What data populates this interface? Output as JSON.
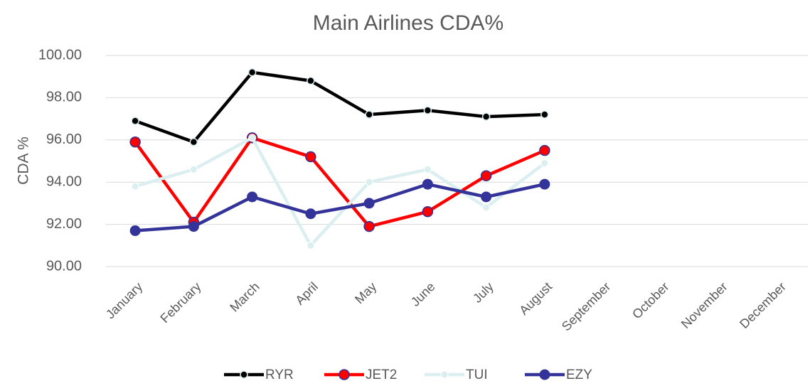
{
  "chart_data": {
    "type": "line",
    "title": "Main Airlines CDA%",
    "y_label": "CDA %",
    "categories": [
      "January",
      "February",
      "March",
      "April",
      "May",
      "June",
      "July",
      "August",
      "September",
      "October",
      "November",
      "December"
    ],
    "series": [
      {
        "name": "RYR",
        "color": "#000000",
        "values": [
          96.9,
          95.9,
          99.2,
          98.8,
          97.2,
          97.4,
          97.1,
          97.2,
          null,
          null,
          null,
          null
        ]
      },
      {
        "name": "JET2",
        "color": "#ff0000",
        "values": [
          95.9,
          92.1,
          96.1,
          95.2,
          91.9,
          92.6,
          94.3,
          95.5,
          null,
          null,
          null,
          null
        ]
      },
      {
        "name": "TUI",
        "color": "#dbeef0",
        "values": [
          93.8,
          94.6,
          96.1,
          91.0,
          94.0,
          94.6,
          92.8,
          94.9,
          null,
          null,
          null,
          null
        ]
      },
      {
        "name": "EZY",
        "color": "#333399",
        "values": [
          91.7,
          91.9,
          93.3,
          92.5,
          93.0,
          93.9,
          93.3,
          93.9,
          null,
          null,
          null,
          null
        ]
      }
    ],
    "ylim": [
      90,
      100
    ],
    "yticks": [
      {
        "value": 90,
        "label": "90.00"
      },
      {
        "value": 92,
        "label": "92.00"
      },
      {
        "value": 94,
        "label": "94.00"
      },
      {
        "value": 96,
        "label": "96.00"
      },
      {
        "value": 98,
        "label": "98.00"
      },
      {
        "value": 100,
        "label": "100.00"
      }
    ],
    "grid": true,
    "legend": "bottom"
  }
}
